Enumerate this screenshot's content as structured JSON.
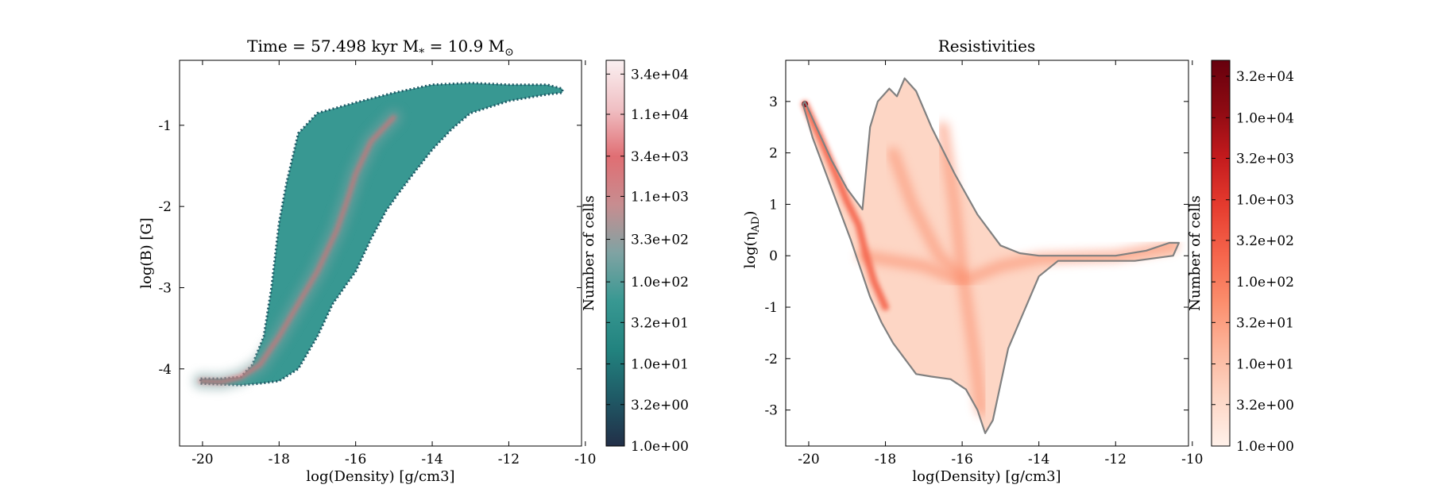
{
  "chart_data": [
    {
      "type": "heatmap",
      "title": "Time = 57.498 kyr    M$_*$ = 10.9 M$_\\odot$",
      "title_text": {
        "main": "Time = 57.498 kyr    M",
        "sub1": "*",
        "mid": " = 10.9 M",
        "sub2": "⊙"
      },
      "xlabel": "log(Density) [g/cm3]",
      "ylabel": "log(B) [G]",
      "xlim": [
        -20.6,
        -10.1
      ],
      "ylim": [
        -4.95,
        -0.2
      ],
      "xticks": [
        -20,
        -18,
        -16,
        -14,
        -12,
        -10
      ],
      "yticks": [
        -4,
        -3,
        -2,
        -1
      ],
      "colormap": [
        "#222f48",
        "#1f5a66",
        "#22837f",
        "#389892",
        "#7fa3a3",
        "#c78d90",
        "#e06e73",
        "#f0c0c4",
        "#faf0f1"
      ],
      "colorbar": {
        "label": "Number of cells",
        "scale": "log",
        "range": [
          1,
          50000
        ],
        "ticks": [
          "1.0e+00",
          "3.2e+00",
          "1.0e+01",
          "3.2e+01",
          "1.0e+02",
          "3.3e+02",
          "1.1e+03",
          "3.4e+03",
          "1.1e+04",
          "3.4e+04"
        ]
      },
      "region_upper": [
        [
          -20.05,
          -4.12
        ],
        [
          -19.5,
          -4.12
        ],
        [
          -19.0,
          -4.1
        ],
        [
          -18.7,
          -3.95
        ],
        [
          -18.4,
          -3.6
        ],
        [
          -18.2,
          -3.0
        ],
        [
          -18.0,
          -2.2
        ],
        [
          -17.8,
          -1.7
        ],
        [
          -17.5,
          -1.1
        ],
        [
          -17.0,
          -0.85
        ],
        [
          -16.0,
          -0.72
        ],
        [
          -15.0,
          -0.6
        ],
        [
          -14.0,
          -0.5
        ],
        [
          -13.0,
          -0.48
        ],
        [
          -12.0,
          -0.5
        ],
        [
          -11.0,
          -0.5
        ],
        [
          -10.6,
          -0.55
        ]
      ],
      "region_lower": [
        [
          -20.05,
          -4.18
        ],
        [
          -19.0,
          -4.2
        ],
        [
          -18.5,
          -4.18
        ],
        [
          -18.0,
          -4.15
        ],
        [
          -17.5,
          -4.0
        ],
        [
          -17.0,
          -3.6
        ],
        [
          -16.6,
          -3.2
        ],
        [
          -16.0,
          -2.8
        ],
        [
          -15.6,
          -2.4
        ],
        [
          -15.2,
          -2.05
        ],
        [
          -14.9,
          -1.85
        ],
        [
          -14.5,
          -1.6
        ],
        [
          -14.0,
          -1.3
        ],
        [
          -13.5,
          -1.05
        ],
        [
          -13.0,
          -0.85
        ],
        [
          -12.0,
          -0.7
        ],
        [
          -11.0,
          -0.62
        ],
        [
          -10.6,
          -0.6
        ]
      ],
      "ridge": [
        [
          -20.05,
          -4.15
        ],
        [
          -19.5,
          -4.16
        ],
        [
          -19.0,
          -4.1
        ],
        [
          -18.5,
          -3.95
        ],
        [
          -18.0,
          -3.6
        ],
        [
          -17.5,
          -3.2
        ],
        [
          -17.0,
          -2.8
        ],
        [
          -16.5,
          -2.3
        ],
        [
          -16.2,
          -1.9
        ],
        [
          -16.0,
          -1.6
        ],
        [
          -15.6,
          -1.2
        ],
        [
          -15.0,
          -0.9
        ]
      ]
    },
    {
      "type": "heatmap",
      "title": "Resistivities",
      "xlabel": "log(Density) [g/cm3]",
      "ylabel": "log($\\eta_{\\rm AD}$)",
      "ylabel_text": {
        "main": "log(η",
        "sub": "AD",
        "end": ")"
      },
      "xlim": [
        -20.6,
        -10.1
      ],
      "ylim": [
        -3.7,
        3.8
      ],
      "xticks": [
        -20,
        -18,
        -16,
        -14,
        -12,
        -10
      ],
      "yticks": [
        -3,
        -2,
        -1,
        0,
        1,
        2,
        3
      ],
      "colormap": [
        "#fff1ea",
        "#fdd6c5",
        "#fcb59b",
        "#fb8d6c",
        "#f5644b",
        "#e53b2e",
        "#c31a1d",
        "#8c0a12",
        "#67000d"
      ],
      "colorbar": {
        "label": "Number of cells",
        "scale": "log",
        "range": [
          1,
          50000
        ],
        "ticks": [
          "1.0e+00",
          "3.2e+00",
          "1.0e+01",
          "3.2e+01",
          "1.0e+02",
          "3.2e+02",
          "1.0e+03",
          "3.2e+03",
          "1.0e+04",
          "3.2e+04"
        ]
      },
      "contour": [
        [
          -20.15,
          2.95
        ],
        [
          -20.1,
          3.0
        ],
        [
          -19.8,
          2.5
        ],
        [
          -19.4,
          1.85
        ],
        [
          -19.0,
          1.3
        ],
        [
          -18.6,
          0.9
        ],
        [
          -18.4,
          2.5
        ],
        [
          -18.2,
          3.0
        ],
        [
          -17.9,
          3.25
        ],
        [
          -17.7,
          3.1
        ],
        [
          -17.5,
          3.45
        ],
        [
          -17.2,
          3.2
        ],
        [
          -16.8,
          2.5
        ],
        [
          -16.2,
          1.6
        ],
        [
          -15.6,
          0.8
        ],
        [
          -15.0,
          0.2
        ],
        [
          -14.5,
          0.05
        ],
        [
          -14.0,
          0.0
        ],
        [
          -13.0,
          0.0
        ],
        [
          -12.0,
          0.0
        ],
        [
          -11.2,
          0.1
        ],
        [
          -10.6,
          0.25
        ],
        [
          -10.35,
          0.25
        ],
        [
          -10.5,
          0.0
        ],
        [
          -11.5,
          -0.1
        ],
        [
          -12.5,
          -0.1
        ],
        [
          -13.5,
          -0.1
        ],
        [
          -14.0,
          -0.4
        ],
        [
          -14.4,
          -1.1
        ],
        [
          -14.8,
          -1.8
        ],
        [
          -15.0,
          -2.5
        ],
        [
          -15.2,
          -3.2
        ],
        [
          -15.4,
          -3.45
        ],
        [
          -15.6,
          -3.0
        ],
        [
          -15.9,
          -2.6
        ],
        [
          -16.3,
          -2.4
        ],
        [
          -16.8,
          -2.35
        ],
        [
          -17.2,
          -2.3
        ],
        [
          -17.5,
          -2.0
        ],
        [
          -17.8,
          -1.7
        ],
        [
          -18.1,
          -1.3
        ],
        [
          -18.4,
          -0.8
        ],
        [
          -18.9,
          0.3
        ],
        [
          -19.4,
          1.3
        ],
        [
          -19.9,
          2.3
        ],
        [
          -20.15,
          2.95
        ]
      ],
      "main_line": [
        [
          -20.1,
          2.95
        ],
        [
          -19.7,
          2.3
        ],
        [
          -19.3,
          1.6
        ],
        [
          -19.0,
          1.05
        ],
        [
          -18.7,
          0.6
        ],
        [
          -18.5,
          0.0
        ],
        [
          -18.3,
          -0.5
        ],
        [
          -18.0,
          -1.0
        ]
      ],
      "ridges": [
        [
          [
            -18.6,
            0.0
          ],
          [
            -17.8,
            -0.1
          ],
          [
            -17.0,
            -0.2
          ],
          [
            -16.0,
            -0.5
          ],
          [
            -15.0,
            -0.2
          ],
          [
            -14.0,
            -0.05
          ],
          [
            -12.0,
            0.0
          ],
          [
            -10.5,
            0.2
          ]
        ],
        [
          [
            -16.5,
            2.5
          ],
          [
            -16.2,
            1.0
          ],
          [
            -16.0,
            -0.3
          ],
          [
            -15.7,
            -1.8
          ],
          [
            -15.5,
            -3.0
          ]
        ],
        [
          [
            -17.8,
            2.0
          ],
          [
            -17.3,
            1.0
          ],
          [
            -16.6,
            0.0
          ],
          [
            -16.0,
            -0.4
          ]
        ]
      ]
    }
  ]
}
